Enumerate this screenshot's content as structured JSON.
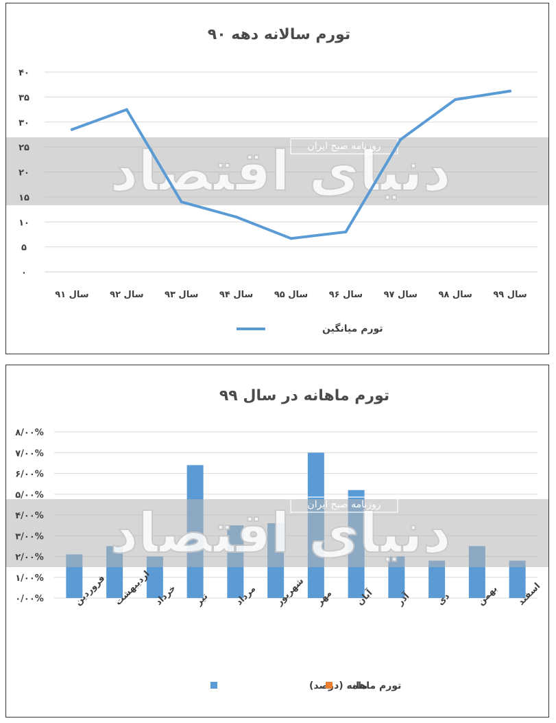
{
  "charts": [
    {
      "title": "تورم سالانه دهه ۹۰",
      "legend": [
        {
          "name": "تورم میانگین",
          "color": "#5b9bd5",
          "kind": "line"
        }
      ],
      "watermark": {
        "logo_text": "دنیای اقتصاد",
        "label": "روزنامه صبح ایران"
      }
    },
    {
      "title": "تورم ماهانه در سال ۹۹",
      "legend": [
        {
          "name": "تورم ماهانه (درصد)",
          "color": "#5b9bd5",
          "kind": "square"
        },
        {
          "name": "ماه",
          "color": "#ed7d31",
          "kind": "square"
        }
      ],
      "watermark": {
        "logo_text": "دنیای اقتصاد",
        "label": "روزنامه صبح ایران"
      }
    }
  ],
  "chart_data": [
    {
      "type": "line",
      "title": "تورم سالانه دهه ۹۰",
      "categories": [
        "سال ۹۱",
        "سال ۹۲",
        "سال ۹۳",
        "سال ۹۴",
        "سال ۹۵",
        "سال ۹۶",
        "سال ۹۷",
        "سال ۹۸",
        "سال ۹۹"
      ],
      "series": [
        {
          "name": "تورم میانگین",
          "values": [
            28.5,
            32.5,
            14,
            11,
            6.7,
            8,
            26.5,
            34.5,
            36.2
          ]
        }
      ],
      "ylim": [
        0,
        40
      ],
      "yticks": [
        0,
        5,
        10,
        15,
        20,
        25,
        30,
        35,
        40
      ],
      "yticklabels": [
        "۰",
        "۵",
        "۱۰",
        "۱۵",
        "۲۰",
        "۲۵",
        "۳۰",
        "۳۵",
        "۴۰"
      ],
      "grid": true,
      "legend_position": "bottom",
      "series_color": "#5b9bd5"
    },
    {
      "type": "bar",
      "title": "تورم ماهانه در سال ۹۹",
      "categories": [
        "فروردین",
        "اردیبهشت",
        "خرداد",
        "تیر",
        "مرداد",
        "شهریور",
        "مهر",
        "آبان",
        "آذر",
        "دی",
        "بهمن",
        "اسفند"
      ],
      "series": [
        {
          "name": "تورم ماهانه (درصد)",
          "values": [
            2.1,
            2.5,
            2.0,
            6.4,
            3.5,
            3.6,
            7.0,
            5.2,
            2.0,
            1.8,
            2.5,
            1.8
          ]
        }
      ],
      "ylim": [
        0,
        8
      ],
      "yticks": [
        0,
        1,
        2,
        3,
        4,
        5,
        6,
        7,
        8
      ],
      "yticklabels": [
        "۰/۰۰%",
        "۱/۰۰%",
        "۲/۰۰%",
        "۳/۰۰%",
        "۴/۰۰%",
        "۵/۰۰%",
        "۶/۰۰%",
        "۷/۰۰%",
        "۸/۰۰%"
      ],
      "grid": true,
      "legend_position": "bottom",
      "series_color": "#5b9bd5"
    }
  ]
}
